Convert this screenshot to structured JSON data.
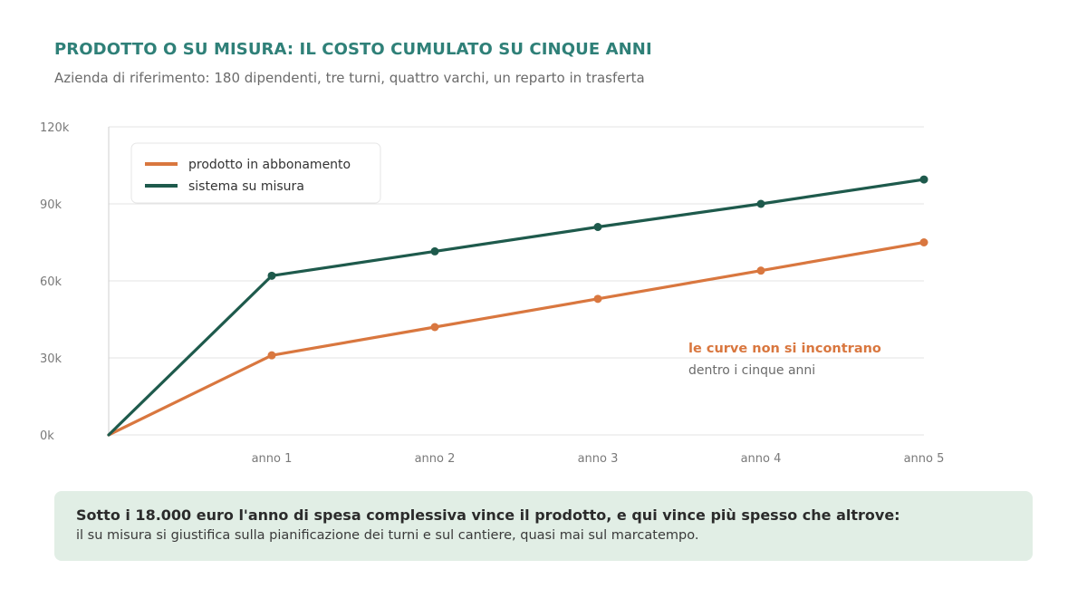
{
  "header": {
    "title": "PRODOTTO O SU MISURA: IL COSTO CUMULATO SU CINQUE ANNI",
    "subtitle": "Azienda di riferimento: 180 dipendenti, tre turni, quattro varchi, un reparto in trasferta"
  },
  "chart_data": {
    "type": "line",
    "x": [
      0,
      1,
      2,
      3,
      4,
      5
    ],
    "x_tick_labels": [
      "anno 1",
      "anno 2",
      "anno 3",
      "anno 4",
      "anno 5"
    ],
    "y_tick_labels": [
      "0k",
      "30k",
      "60k",
      "90k",
      "120k"
    ],
    "y_ticks": [
      0,
      30000,
      60000,
      90000,
      120000
    ],
    "ylim": [
      0,
      120000
    ],
    "xlim": [
      0,
      5
    ],
    "grid": true,
    "legend_position": "top-left",
    "series": [
      {
        "name": "prodotto in abbonamento",
        "color": "#d9773f",
        "values": [
          0,
          31000,
          42000,
          53000,
          64000,
          75000
        ]
      },
      {
        "name": "sistema su misura",
        "color": "#1e5a4c",
        "values": [
          0,
          62000,
          71500,
          81000,
          90000,
          99500
        ]
      }
    ],
    "annotation": {
      "title": "le curve non si incontrano",
      "text": "dentro i cinque anni"
    }
  },
  "callout": {
    "bold": "Sotto i 18.000 euro l'anno di spesa complessiva vince il prodotto, e qui vince più spesso che altrove:",
    "text": "il su misura si giustifica sulla pianificazione dei turni e sul cantiere, quasi mai sul marcatempo."
  }
}
